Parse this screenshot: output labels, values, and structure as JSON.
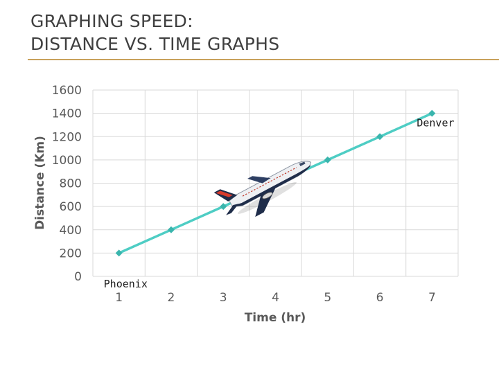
{
  "slide": {
    "title_line1": "GRAPHING SPEED:",
    "title_line2": "DISTANCE VS. TIME GRAPHS"
  },
  "colors": {
    "line": "#4ecdc4",
    "marker": "#3ab5ad",
    "grid": "#d9d9d9",
    "title_rule": "#c9a15c"
  },
  "chart_data": {
    "type": "line",
    "x": [
      1,
      2,
      3,
      4,
      5,
      6,
      7
    ],
    "x_tick_labels": [
      "1",
      "2",
      "3",
      "4",
      "5",
      "6",
      "7"
    ],
    "series": [
      {
        "values": [
          200,
          400,
          600,
          800,
          1000,
          1200,
          1400
        ]
      }
    ],
    "xlabel": "Time (hr)",
    "ylabel": "Distance (Km)",
    "ylim": [
      0,
      1600
    ],
    "y_ticks": [
      0,
      200,
      400,
      600,
      800,
      1000,
      1200,
      1400,
      1600
    ],
    "grid": true,
    "annotations": [
      {
        "text": "Phoenix",
        "x": 1,
        "y": 0
      },
      {
        "text": "Denver",
        "x": 7,
        "y": 1400
      }
    ],
    "image": "airplane-icon"
  }
}
